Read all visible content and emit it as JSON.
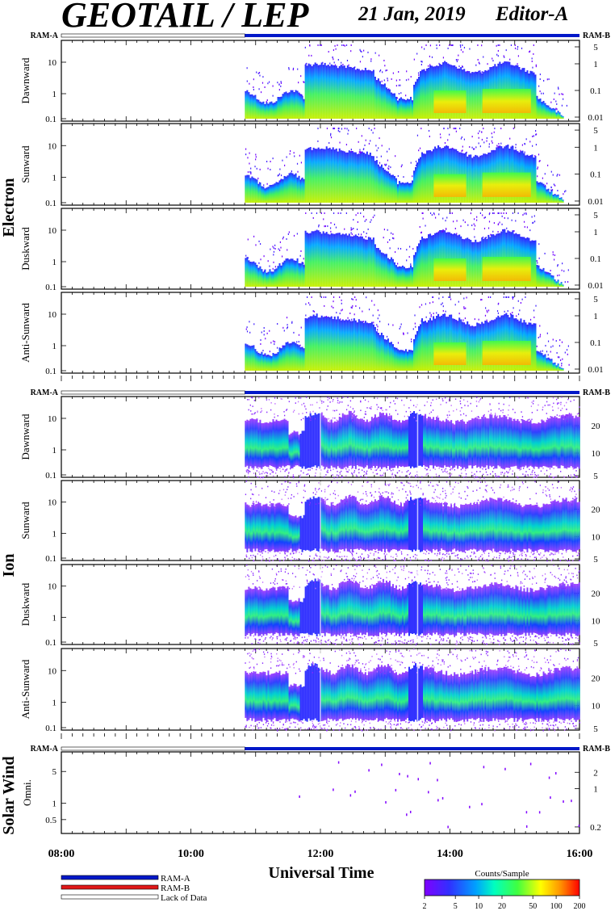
{
  "header": {
    "title": "GEOTAIL / LEP",
    "date": "21 Jan, 2019",
    "editor": "Editor-A"
  },
  "colors": {
    "ram_a": "#0018c8",
    "ram_b": "#e01818",
    "lack": "#ffffff",
    "panel_border": "#000000"
  },
  "colorbar": {
    "label": "Counts/Sample",
    "ticks": [
      "2",
      "5",
      "10",
      "20",
      "50",
      "100",
      "200"
    ],
    "colors": [
      "#8000ff",
      "#3030ff",
      "#00a0ff",
      "#00ffc0",
      "#40ff40",
      "#ffff00",
      "#ff9000",
      "#ff0000"
    ]
  },
  "legend": {
    "items": [
      {
        "label": "RAM-A",
        "color": "#0018c8"
      },
      {
        "label": "RAM-B",
        "color": "#e01818"
      },
      {
        "label": "Lack of Data",
        "color": "#ffffff"
      }
    ]
  },
  "chart_data": {
    "type": "heatmap",
    "x_axis": {
      "label": "Universal Time",
      "range": [
        "08:00",
        "16:00"
      ],
      "tick_labels": [
        "08:00",
        "10:00",
        "12:00",
        "14:00",
        "16:00"
      ]
    },
    "ram_status": {
      "left_label": "RAM-A",
      "right_label": "RAM-B",
      "lack_of_data": [
        "08:00",
        "10:50"
      ],
      "ram_a": [
        "10:50",
        "16:00"
      ]
    },
    "groups": [
      {
        "label": "Electron",
        "panels": [
          {
            "label": "Dawnward",
            "left_ticks": [
              "10",
              "1",
              "0.1"
            ],
            "right_ticks": [
              "5",
              "1",
              "0.1",
              "0.01"
            ]
          },
          {
            "label": "Sunward",
            "left_ticks": [
              "10",
              "1",
              "0.1"
            ],
            "right_ticks": [
              "5",
              "1",
              "0.1",
              "0.01"
            ]
          },
          {
            "label": "Duskward",
            "left_ticks": [
              "10",
              "1",
              "0.1"
            ],
            "right_ticks": [
              "5",
              "1",
              "0.1",
              "0.01"
            ]
          },
          {
            "label": "Anti-Sunward",
            "left_ticks": [
              "10",
              "1",
              "0.1"
            ],
            "right_ticks": [
              "5",
              "1",
              "0.1",
              "0.01"
            ]
          }
        ]
      },
      {
        "label": "Ion",
        "panels": [
          {
            "label": "Dawnward",
            "left_ticks": [
              "10",
              "1",
              "0.1"
            ],
            "right_ticks": [
              "20",
              "10",
              "5"
            ]
          },
          {
            "label": "Sunward",
            "left_ticks": [
              "10",
              "1",
              "0.1"
            ],
            "right_ticks": [
              "20",
              "10",
              "5"
            ]
          },
          {
            "label": "Duskward",
            "left_ticks": [
              "10",
              "1",
              "0.1"
            ],
            "right_ticks": [
              "20",
              "10",
              "5"
            ]
          },
          {
            "label": "Anti-Sunward",
            "left_ticks": [
              "10",
              "1",
              "0.1"
            ],
            "right_ticks": [
              "20",
              "10",
              "5"
            ]
          }
        ]
      },
      {
        "label": "Solar Wind",
        "panels": [
          {
            "label": "Omni.",
            "left_ticks": [
              "5",
              "1",
              "0.5"
            ],
            "right_ticks": [
              "2",
              "1",
              "0.2"
            ]
          }
        ]
      }
    ]
  }
}
